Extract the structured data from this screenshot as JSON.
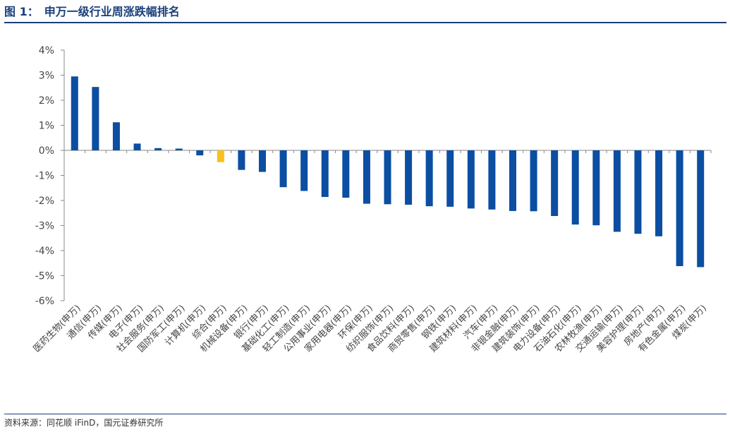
{
  "header": {
    "figure_number": "图 1：",
    "figure_title": "申万一级行业周涨跌幅排名"
  },
  "footer": {
    "source": "资料来源：同花顺 iFinD，国元证券研究所"
  },
  "colors": {
    "title": "#1a3f7a",
    "bar_default": "#0b4ea2",
    "bar_highlight": "#f6c21c",
    "axis": "#888888"
  },
  "chart_data": {
    "type": "bar",
    "title": "申万一级行业周涨跌幅排名",
    "xlabel": "",
    "ylabel": "",
    "ylim": [
      -6,
      4
    ],
    "y_unit": "%",
    "yticks": [
      "4%",
      "3%",
      "2%",
      "1%",
      "0%",
      "-1%",
      "-2%",
      "-3%",
      "-4%",
      "-5%",
      "-6%"
    ],
    "grid": false,
    "legend": "none",
    "highlight_category": "综合(申万)",
    "categories": [
      "医药生物(申万)",
      "通信(申万)",
      "传媒(申万)",
      "电子(申万)",
      "社会服务(申万)",
      "国防军工(申万)",
      "计算机(申万)",
      "综合(申万)",
      "机械设备(申万)",
      "银行(申万)",
      "基础化工(申万)",
      "轻工制造(申万)",
      "公用事业(申万)",
      "家用电器(申万)",
      "环保(申万)",
      "纺织服饰(申万)",
      "食品饮料(申万)",
      "商贸零售(申万)",
      "钢铁(申万)",
      "建筑材料(申万)",
      "汽车(申万)",
      "非银金融(申万)",
      "建筑装饰(申万)",
      "电力设备(申万)",
      "石油石化(申万)",
      "农林牧渔(申万)",
      "交通运输(申万)",
      "美容护理(申万)",
      "房地产(申万)",
      "有色金属(申万)",
      "煤炭(申万)"
    ],
    "values": [
      2.95,
      2.53,
      1.12,
      0.27,
      0.09,
      0.07,
      -0.2,
      -0.47,
      -0.78,
      -0.86,
      -1.47,
      -1.62,
      -1.86,
      -1.89,
      -2.13,
      -2.15,
      -2.17,
      -2.23,
      -2.25,
      -2.32,
      -2.36,
      -2.42,
      -2.43,
      -2.62,
      -2.96,
      -2.99,
      -3.25,
      -3.33,
      -3.43,
      -4.62,
      -4.66
    ]
  }
}
